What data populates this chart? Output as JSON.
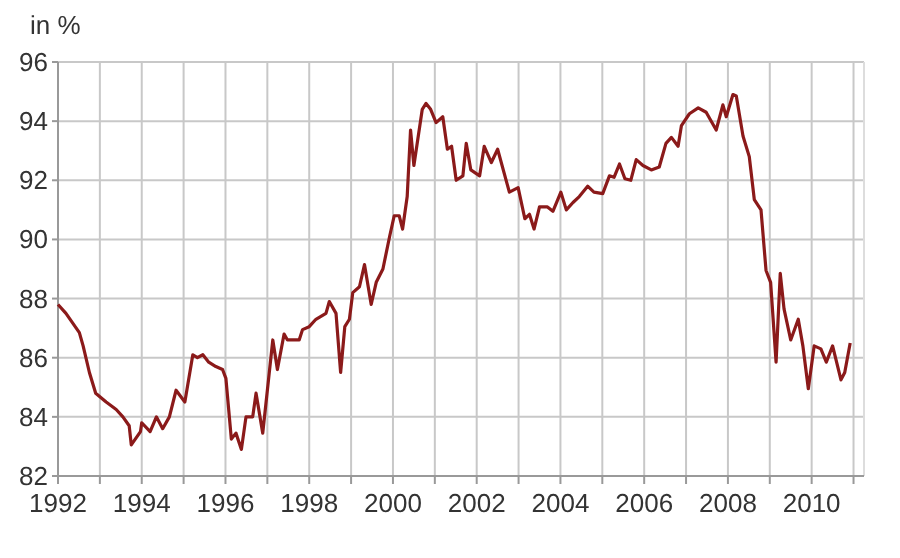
{
  "chart_data": {
    "type": "line",
    "ylabel": "in %",
    "xlim": [
      1992,
      2011.25
    ],
    "ylim": [
      82,
      96
    ],
    "yticks": [
      82,
      84,
      86,
      88,
      90,
      92,
      94,
      96
    ],
    "xticks": [
      1992,
      {
        "value": 1993,
        "label": null
      },
      1994,
      {
        "value": 1995,
        "label": null
      },
      1996,
      {
        "value": 1997,
        "label": null
      },
      1998,
      {
        "value": 1999,
        "label": null
      },
      2000,
      {
        "value": 2001,
        "label": null
      },
      2002,
      {
        "value": 2003,
        "label": null
      },
      2004,
      {
        "value": 2005,
        "label": null
      },
      2006,
      {
        "value": 2007,
        "label": null
      },
      2008,
      {
        "value": 2009,
        "label": null
      },
      2010,
      {
        "value": 2011,
        "label": null
      }
    ],
    "grid": true,
    "marker": "none",
    "line_style": "solid",
    "series": [
      {
        "color": "#8b1a1a",
        "x": [
          1992.0,
          1992.19,
          1992.51,
          1992.6,
          1992.75,
          1992.9,
          1993.15,
          1993.39,
          1993.55,
          1993.7,
          1993.75,
          1993.97,
          1994.0,
          1994.2,
          1994.35,
          1994.5,
          1994.66,
          1994.82,
          1995.03,
          1995.22,
          1995.33,
          1995.46,
          1995.6,
          1995.77,
          1995.93,
          1996.01,
          1996.14,
          1996.25,
          1996.38,
          1996.49,
          1996.65,
          1996.73,
          1996.89,
          1997.13,
          1997.24,
          1997.4,
          1997.48,
          1997.76,
          1997.84,
          1998.0,
          1998.16,
          1998.4,
          1998.48,
          1998.64,
          1998.75,
          1998.85,
          1998.96,
          1999.04,
          1999.2,
          1999.32,
          1999.48,
          1999.6,
          1999.76,
          1999.92,
          2000.03,
          2000.15,
          2000.23,
          2000.34,
          2000.42,
          2000.5,
          2000.7,
          2000.79,
          2000.9,
          2001.03,
          2001.19,
          2001.3,
          2001.4,
          2001.51,
          2001.67,
          2001.75,
          2001.86,
          2002.07,
          2002.18,
          2002.35,
          2002.5,
          2002.78,
          2002.99,
          2003.15,
          2003.26,
          2003.37,
          2003.5,
          2003.69,
          2003.82,
          2004.01,
          2004.14,
          2004.3,
          2004.45,
          2004.65,
          2004.8,
          2005.01,
          2005.17,
          2005.28,
          2005.41,
          2005.54,
          2005.68,
          2005.81,
          2005.97,
          2006.17,
          2006.36,
          2006.52,
          2006.65,
          2006.81,
          2006.89,
          2007.08,
          2007.29,
          2007.48,
          2007.72,
          2007.88,
          2007.96,
          2008.12,
          2008.2,
          2008.36,
          2008.51,
          2008.63,
          2008.79,
          2008.91,
          2009.02,
          2009.15,
          2009.25,
          2009.34,
          2009.5,
          2009.68,
          2009.79,
          2009.92,
          2010.06,
          2010.22,
          2010.35,
          2010.5,
          2010.7,
          2010.79,
          2010.92
        ],
        "values": [
          87.8,
          87.5,
          86.85,
          86.4,
          85.5,
          84.8,
          84.5,
          84.25,
          84.0,
          83.7,
          83.05,
          83.5,
          83.8,
          83.5,
          84.0,
          83.6,
          84.0,
          84.9,
          84.5,
          86.1,
          86.0,
          86.1,
          85.85,
          85.7,
          85.6,
          85.3,
          83.25,
          83.45,
          82.9,
          84.0,
          84.0,
          84.8,
          83.45,
          86.6,
          85.6,
          86.8,
          86.6,
          86.6,
          86.95,
          87.05,
          87.3,
          87.5,
          87.9,
          87.5,
          85.5,
          87.05,
          87.3,
          88.2,
          88.4,
          89.15,
          87.8,
          88.55,
          89.0,
          90.1,
          90.8,
          90.8,
          90.35,
          91.45,
          93.7,
          92.5,
          94.4,
          94.6,
          94.4,
          93.95,
          94.15,
          93.05,
          93.15,
          92.0,
          92.15,
          93.25,
          92.35,
          92.15,
          93.15,
          92.6,
          93.05,
          91.6,
          91.75,
          90.7,
          90.85,
          90.35,
          91.1,
          91.1,
          90.95,
          91.6,
          91.0,
          91.25,
          91.45,
          91.8,
          91.6,
          91.55,
          92.15,
          92.1,
          92.55,
          92.05,
          92.0,
          92.7,
          92.5,
          92.35,
          92.45,
          93.25,
          93.45,
          93.15,
          93.85,
          94.25,
          94.45,
          94.3,
          93.7,
          94.55,
          94.15,
          94.9,
          94.85,
          93.5,
          92.8,
          91.35,
          91.0,
          88.95,
          88.55,
          85.85,
          88.85,
          87.65,
          86.6,
          87.3,
          86.4,
          84.95,
          86.4,
          86.3,
          85.85,
          86.4,
          85.25,
          85.5,
          86.5
        ]
      }
    ]
  }
}
